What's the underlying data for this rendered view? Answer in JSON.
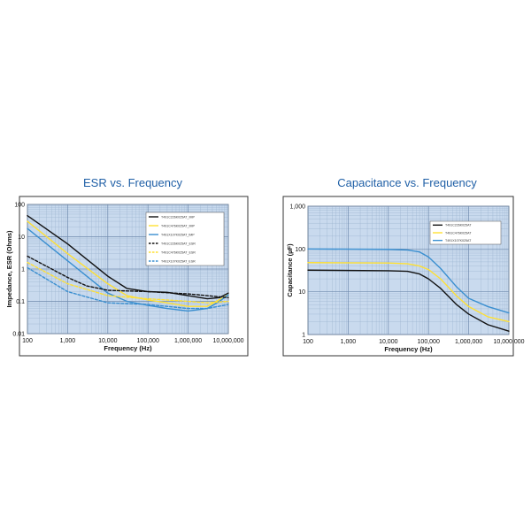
{
  "chart_data": [
    {
      "type": "line",
      "title": "ESR vs. Frequency",
      "xlabel": "Frequency (Hz)",
      "ylabel": "Impedance, ESR (Ohms)",
      "xscale": "log",
      "yscale": "log",
      "xlim": [
        100,
        10000000
      ],
      "ylim": [
        0.01,
        100
      ],
      "x_ticks": [
        "100",
        "1,000",
        "10,000",
        "100,000",
        "1,000,000",
        "10,000,000"
      ],
      "y_ticks": [
        "100",
        "10",
        "1",
        "0.1",
        "0.01"
      ],
      "grid": true,
      "legend_position": "top-right",
      "series": [
        {
          "name": "T491C226K025AT_IMP",
          "color": "#111111",
          "dash": false,
          "points": [
            [
              100,
              45
            ],
            [
              1000,
              6
            ],
            [
              10000,
              0.6
            ],
            [
              30000,
              0.25
            ],
            [
              100000,
              0.2
            ],
            [
              300000,
              0.19
            ],
            [
              1000000,
              0.15
            ],
            [
              3000000,
              0.12
            ],
            [
              6000000,
              0.13
            ],
            [
              10000000,
              0.18
            ]
          ]
        },
        {
          "name": "T491C476K025AT_IMP",
          "color": "#ffe033",
          "dash": false,
          "points": [
            [
              100,
              30
            ],
            [
              1000,
              3
            ],
            [
              10000,
              0.35
            ],
            [
              30000,
              0.15
            ],
            [
              100000,
              0.11
            ],
            [
              300000,
              0.09
            ],
            [
              1000000,
              0.07
            ],
            [
              3000000,
              0.07
            ],
            [
              10000000,
              0.16
            ]
          ]
        },
        {
          "name": "T491X107K025AT_IMP",
          "color": "#3a8fd0",
          "dash": false,
          "points": [
            [
              100,
              18
            ],
            [
              1000,
              1.8
            ],
            [
              10000,
              0.18
            ],
            [
              30000,
              0.1
            ],
            [
              100000,
              0.075
            ],
            [
              300000,
              0.06
            ],
            [
              1000000,
              0.05
            ],
            [
              3000000,
              0.06
            ],
            [
              6000000,
              0.1
            ],
            [
              10000000,
              0.16
            ]
          ]
        },
        {
          "name": "T491C226K025AT_ESR",
          "color": "#111111",
          "dash": true,
          "points": [
            [
              100,
              2.5
            ],
            [
              1000,
              0.55
            ],
            [
              3000,
              0.3
            ],
            [
              10000,
              0.22
            ],
            [
              100000,
              0.2
            ],
            [
              1000000,
              0.17
            ],
            [
              3000000,
              0.15
            ],
            [
              10000000,
              0.13
            ]
          ]
        },
        {
          "name": "T491C476K025AT_ESR",
          "color": "#ffe033",
          "dash": true,
          "points": [
            [
              100,
              1.6
            ],
            [
              1000,
              0.35
            ],
            [
              10000,
              0.15
            ],
            [
              100000,
              0.12
            ],
            [
              1000000,
              0.1
            ],
            [
              3000000,
              0.09
            ],
            [
              10000000,
              0.1
            ]
          ]
        },
        {
          "name": "T491X107K025AT_ESR",
          "color": "#3a8fd0",
          "dash": true,
          "points": [
            [
              100,
              1.1
            ],
            [
              1000,
              0.2
            ],
            [
              10000,
              0.09
            ],
            [
              100000,
              0.08
            ],
            [
              1000000,
              0.06
            ],
            [
              3000000,
              0.06
            ],
            [
              10000000,
              0.08
            ]
          ]
        }
      ]
    },
    {
      "type": "line",
      "title": "Capacitance vs. Frequency",
      "xlabel": "Frequency (Hz)",
      "ylabel": "Capacitance (µF)",
      "xscale": "log",
      "yscale": "log",
      "xlim": [
        100,
        10000000
      ],
      "ylim": [
        1,
        1000
      ],
      "x_ticks": [
        "100",
        "1,000",
        "10,000",
        "100,000",
        "1,000,000",
        "10,000,000"
      ],
      "y_ticks": [
        "1,000",
        "100",
        "10",
        "1"
      ],
      "grid": true,
      "legend_position": "top-right",
      "series": [
        {
          "name": "T491C226K025AT",
          "color": "#111111",
          "dash": false,
          "points": [
            [
              100,
              32
            ],
            [
              10000,
              31
            ],
            [
              30000,
              30
            ],
            [
              60000,
              26
            ],
            [
              100000,
              20
            ],
            [
              200000,
              12
            ],
            [
              500000,
              5
            ],
            [
              1000000,
              3
            ],
            [
              3000000,
              1.7
            ],
            [
              10000000,
              1.2
            ]
          ]
        },
        {
          "name": "T491C476K025AT",
          "color": "#ffe033",
          "dash": false,
          "points": [
            [
              100,
              48
            ],
            [
              10000,
              47
            ],
            [
              30000,
              45
            ],
            [
              60000,
              40
            ],
            [
              100000,
              33
            ],
            [
              200000,
              20
            ],
            [
              500000,
              8
            ],
            [
              1000000,
              4.5
            ],
            [
              3000000,
              2.6
            ],
            [
              10000000,
              2
            ]
          ]
        },
        {
          "name": "T491X107K025AT",
          "color": "#3a8fd0",
          "dash": false,
          "points": [
            [
              100,
              100
            ],
            [
              10000,
              98
            ],
            [
              30000,
              95
            ],
            [
              60000,
              85
            ],
            [
              100000,
              65
            ],
            [
              200000,
              35
            ],
            [
              500000,
              13
            ],
            [
              1000000,
              7
            ],
            [
              3000000,
              4.5
            ],
            [
              10000000,
              3.2
            ]
          ]
        }
      ]
    }
  ]
}
